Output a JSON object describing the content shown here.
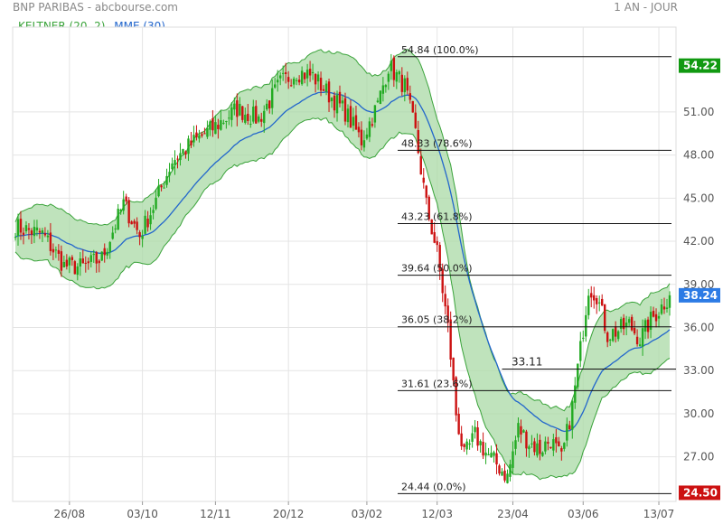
{
  "header": {
    "title": "BNP PARIBAS - abcbourse.com",
    "period": "1 AN - JOUR"
  },
  "legend": {
    "keltner": "KELTNER (20, 2)",
    "mme": "MME (30)"
  },
  "colors": {
    "up": "#22aa22",
    "down": "#cc1111",
    "ema": "#2266cc",
    "keltner_line": "#3aa33a",
    "keltner_fill": "#a9d9a6",
    "grid": "#e4e4e4",
    "axis_text": "#555555",
    "badge_high": "#119911",
    "badge_low": "#cc1111",
    "badge_last": "#2c7be5"
  },
  "chart_data": {
    "type": "candlestick",
    "ylim": [
      23.9,
      56.9
    ],
    "y_ticks": [
      "27.00",
      "30.00",
      "33.00",
      "36.00",
      "39.00",
      "42.00",
      "45.00",
      "48.00",
      "51.00"
    ],
    "x_ticks": [
      {
        "label": "26/08",
        "day": 20
      },
      {
        "label": "03/10",
        "day": 47
      },
      {
        "label": "12/11",
        "day": 74
      },
      {
        "label": "20/12",
        "day": 101
      },
      {
        "label": "03/02",
        "day": 130
      },
      {
        "label": "12/03",
        "day": 156
      },
      {
        "label": "23/04",
        "day": 184
      },
      {
        "label": "03/06",
        "day": 210
      },
      {
        "label": "13/07",
        "day": 238
      }
    ],
    "n_days": 243,
    "anchors": [
      [
        0,
        43.0
      ],
      [
        10,
        42.5
      ],
      [
        18,
        40.3
      ],
      [
        25,
        40.2
      ],
      [
        32,
        40.8
      ],
      [
        40,
        44.6
      ],
      [
        46,
        42.4
      ],
      [
        52,
        44.8
      ],
      [
        58,
        47.6
      ],
      [
        66,
        48.9
      ],
      [
        74,
        50.0
      ],
      [
        82,
        51.2
      ],
      [
        90,
        50.5
      ],
      [
        98,
        53.0
      ],
      [
        104,
        53.8
      ],
      [
        110,
        53.5
      ],
      [
        116,
        52.2
      ],
      [
        122,
        51.0
      ],
      [
        128,
        49.0
      ],
      [
        134,
        51.5
      ],
      [
        138,
        54.2
      ],
      [
        144,
        52.8
      ],
      [
        148,
        49.5
      ],
      [
        152,
        44.5
      ],
      [
        156,
        41.2
      ],
      [
        160,
        36.0
      ],
      [
        163,
        30.0
      ],
      [
        166,
        27.0
      ],
      [
        170,
        28.5
      ],
      [
        174,
        27.3
      ],
      [
        178,
        26.5
      ],
      [
        182,
        25.6
      ],
      [
        186,
        29.0
      ],
      [
        190,
        28.0
      ],
      [
        194,
        27.5
      ],
      [
        198,
        28.2
      ],
      [
        202,
        26.8
      ],
      [
        206,
        30.5
      ],
      [
        209,
        34.5
      ],
      [
        212,
        38.8
      ],
      [
        215,
        38.3
      ],
      [
        219,
        35.5
      ],
      [
        223,
        35.8
      ],
      [
        227,
        36.2
      ],
      [
        231,
        35.2
      ],
      [
        235,
        36.5
      ],
      [
        238,
        37.2
      ],
      [
        242,
        38.24
      ]
    ],
    "ema_period": 30,
    "keltner": {
      "period": 20,
      "mult": 2
    },
    "fibonacci": [
      {
        "label": "54.84  (100.0%)",
        "value": 54.84
      },
      {
        "label": "48.33  (78.6%)",
        "value": 48.33
      },
      {
        "label": "43.23  (61.8%)",
        "value": 43.23
      },
      {
        "label": "39.64  (50.0%)",
        "value": 39.64
      },
      {
        "label": "36.05  (38.2%)",
        "value": 36.05
      },
      {
        "label": "31.61  (23.6%)",
        "value": 31.61
      },
      {
        "label": "24.44  (0.0%)",
        "value": 24.44
      }
    ],
    "annotation": {
      "label": "33.11",
      "value": 33.11,
      "from_day": 180
    },
    "badges": [
      {
        "label": "54.22",
        "value": 54.22,
        "kind": "high"
      },
      {
        "label": "38.24",
        "value": 38.24,
        "kind": "last"
      },
      {
        "label": "24.50",
        "value": 24.5,
        "kind": "low"
      }
    ]
  }
}
